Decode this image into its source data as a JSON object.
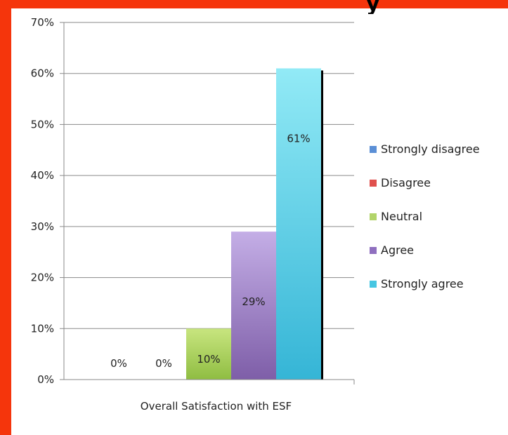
{
  "chart_data": {
    "type": "bar",
    "title": "",
    "xlabel": "Overall Satisfaction with ESF",
    "ylabel": "",
    "categories": [
      "Overall Satisfaction with ESF"
    ],
    "ylim": [
      0,
      70
    ],
    "yticks": [
      "0%",
      "10%",
      "20%",
      "30%",
      "40%",
      "50%",
      "60%",
      "70%"
    ],
    "ytick_values": [
      0,
      10,
      20,
      30,
      40,
      50,
      60,
      70
    ],
    "grid": true,
    "legend_position": "right",
    "series": [
      {
        "name": "Strongly disagree",
        "values": [
          0
        ],
        "label": "0%",
        "color": "#4f81bd"
      },
      {
        "name": "Disagree",
        "values": [
          0
        ],
        "label": "0%",
        "color": "#e05b58"
      },
      {
        "name": "Neutral",
        "values": [
          10
        ],
        "label": "10%",
        "color": "#a6cd5f"
      },
      {
        "name": "Agree",
        "values": [
          29
        ],
        "label": "29%",
        "color": "#9b7ec4"
      },
      {
        "name": "Strongly agree",
        "values": [
          61
        ],
        "label": "61%",
        "color": "#4cc2dd"
      }
    ]
  }
}
